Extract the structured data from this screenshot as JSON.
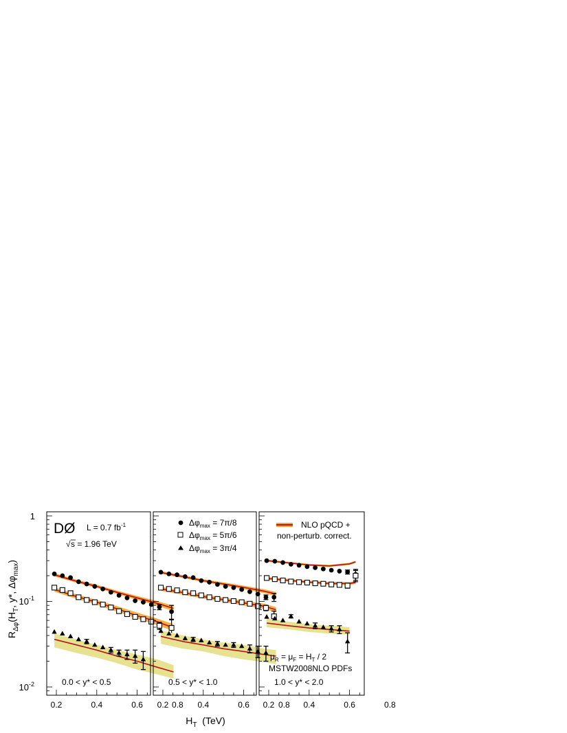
{
  "figure": {
    "experiment_logo": "DØ",
    "luminosity_label": "L = 0.7 fb",
    "luminosity_exp": "-1",
    "energy_sqrt": "√",
    "energy_label": "s = 1.96 TeV",
    "ylabel": {
      "main": "R",
      "sub1": "Δφ",
      "mid": "(H",
      "sub2": "T",
      "tail": ", y*, Δφ",
      "sub3": "max",
      "end": ")"
    },
    "xlabel": {
      "main": "H",
      "sub": "T",
      "tail": "  (TeV)"
    },
    "y_ticks": [
      {
        "label": "1",
        "exp": ""
      },
      {
        "label": "10",
        "exp": "-1"
      },
      {
        "label": "10",
        "exp": "-2"
      }
    ],
    "x_ticks": [
      "0.2",
      "0.4",
      "0.6",
      "0.8"
    ],
    "legend_series": [
      {
        "prefix": "Δφ",
        "sub": "max",
        "value": " = 7π/8"
      },
      {
        "prefix": "Δφ",
        "sub": "max",
        "value": " = 5π/6"
      },
      {
        "prefix": "Δφ",
        "sub": "max",
        "value": " = 3π/4"
      }
    ],
    "legend_theory": {
      "line1": "NLO pQCD +",
      "line2": "non-perturb. correct."
    },
    "scale_note": {
      "mu": "μ",
      "r": "R",
      "eq": " = μ",
      "f": "F",
      "rest": " = H",
      "t": "T",
      "end": " / 2"
    },
    "pdf_note": "MSTW2008NLO PDFs",
    "colors": {
      "theory_line": "#b5121b",
      "band": "#e6e28f",
      "band_edge": "#f2a530"
    }
  },
  "chart_data": [
    {
      "type": "scatter",
      "region": "0.0 < y* < 0.5",
      "xlabel": "HT (TeV)",
      "ylabel": "RΔφ(HT, y*, Δφmax)",
      "y_scale": "log",
      "xlim": [
        0.15,
        0.85
      ],
      "ylim": [
        0.009,
        1.0
      ],
      "series": [
        {
          "name": "Δφmax = 7π/8",
          "marker": "filled-circle",
          "x": [
            0.19,
            0.23,
            0.27,
            0.31,
            0.35,
            0.39,
            0.43,
            0.47,
            0.51,
            0.55,
            0.59,
            0.63,
            0.67,
            0.71,
            0.77
          ],
          "y": [
            0.21,
            0.2,
            0.19,
            0.17,
            0.16,
            0.15,
            0.14,
            0.128,
            0.118,
            0.11,
            0.102,
            0.098,
            0.092,
            0.086,
            0.076
          ],
          "yerr": [
            0,
            0,
            0,
            0,
            0,
            0,
            0,
            0,
            0,
            0,
            0,
            0,
            0,
            0.006,
            0.014
          ]
        },
        {
          "name": "Δφmax = 5π/6",
          "marker": "open-square",
          "x": [
            0.19,
            0.23,
            0.27,
            0.31,
            0.35,
            0.39,
            0.43,
            0.47,
            0.51,
            0.55,
            0.59,
            0.63,
            0.67,
            0.71,
            0.77
          ],
          "y": [
            0.145,
            0.136,
            0.125,
            0.112,
            0.104,
            0.098,
            0.092,
            0.085,
            0.077,
            0.071,
            0.066,
            0.062,
            0.058,
            0.052,
            0.049
          ],
          "yerr": [
            0,
            0,
            0,
            0,
            0,
            0,
            0,
            0,
            0,
            0,
            0,
            0,
            0,
            0.005,
            0.012
          ]
        },
        {
          "name": "Δφmax = 3π/4",
          "marker": "filled-triangle",
          "x": [
            0.19,
            0.23,
            0.27,
            0.31,
            0.35,
            0.39,
            0.43,
            0.47,
            0.51,
            0.55,
            0.59,
            0.63
          ],
          "y": [
            0.044,
            0.042,
            0.039,
            0.036,
            0.034,
            0.031,
            0.029,
            0.027,
            0.025,
            0.024,
            0.023,
            0.021
          ],
          "yerr": [
            0,
            0,
            0,
            0,
            0.002,
            0,
            0,
            0.002,
            0.002,
            0.003,
            0.004,
            0.005
          ]
        }
      ],
      "theory": [
        {
          "series": "Δφmax = 7π/8",
          "x": [
            0.19,
            0.3,
            0.4,
            0.5,
            0.6,
            0.7,
            0.78
          ],
          "center": [
            0.205,
            0.172,
            0.15,
            0.128,
            0.11,
            0.095,
            0.083
          ],
          "band_lo": [
            0.196,
            0.165,
            0.144,
            0.122,
            0.104,
            0.089,
            0.077
          ],
          "band_hi": [
            0.214,
            0.18,
            0.157,
            0.134,
            0.116,
            0.101,
            0.089
          ]
        },
        {
          "series": "Δφmax = 5π/6",
          "x": [
            0.19,
            0.3,
            0.4,
            0.5,
            0.6,
            0.7,
            0.78
          ],
          "center": [
            0.138,
            0.114,
            0.098,
            0.082,
            0.068,
            0.058,
            0.049
          ],
          "band_lo": [
            0.13,
            0.107,
            0.092,
            0.076,
            0.063,
            0.053,
            0.045
          ],
          "band_hi": [
            0.146,
            0.121,
            0.104,
            0.088,
            0.074,
            0.063,
            0.054
          ]
        },
        {
          "series": "Δφmax = 3π/4",
          "x": [
            0.19,
            0.3,
            0.4,
            0.5,
            0.6,
            0.7,
            0.78
          ],
          "center": [
            0.036,
            0.031,
            0.027,
            0.023,
            0.02,
            0.017,
            0.015
          ],
          "band_lo": [
            0.029,
            0.025,
            0.022,
            0.019,
            0.016,
            0.014,
            0.0125
          ],
          "band_hi": [
            0.042,
            0.036,
            0.031,
            0.027,
            0.024,
            0.021,
            0.018
          ]
        }
      ]
    },
    {
      "type": "scatter",
      "region": "0.5 < y* < 1.0",
      "xlabel": "HT (TeV)",
      "ylabel": "RΔφ(HT, y*, Δφmax)",
      "y_scale": "log",
      "xlim": [
        0.15,
        0.85
      ],
      "ylim": [
        0.009,
        1.0
      ],
      "series": [
        {
          "name": "Δφmax = 7π/8",
          "marker": "filled-circle",
          "x": [
            0.19,
            0.23,
            0.27,
            0.31,
            0.35,
            0.39,
            0.43,
            0.47,
            0.51,
            0.55,
            0.59,
            0.63,
            0.67,
            0.71,
            0.75
          ],
          "y": [
            0.22,
            0.21,
            0.205,
            0.195,
            0.19,
            0.175,
            0.168,
            0.158,
            0.15,
            0.145,
            0.138,
            0.13,
            0.122,
            0.112,
            0.112
          ],
          "yerr": [
            0,
            0,
            0,
            0,
            0,
            0,
            0,
            0,
            0,
            0,
            0,
            0,
            0,
            0.007,
            0.012
          ]
        },
        {
          "name": "Δφmax = 5π/6",
          "marker": "open-square",
          "x": [
            0.19,
            0.23,
            0.27,
            0.31,
            0.35,
            0.39,
            0.43,
            0.47,
            0.51,
            0.55,
            0.59,
            0.63,
            0.67,
            0.71,
            0.75
          ],
          "y": [
            0.145,
            0.14,
            0.135,
            0.128,
            0.125,
            0.118,
            0.112,
            0.107,
            0.104,
            0.101,
            0.098,
            0.094,
            0.088,
            0.084,
            0.067
          ],
          "yerr": [
            0,
            0,
            0,
            0,
            0,
            0,
            0,
            0,
            0,
            0,
            0,
            0,
            0,
            0.006,
            0.01
          ]
        },
        {
          "name": "Δφmax = 3π/4",
          "marker": "filled-triangle",
          "x": [
            0.19,
            0.23,
            0.27,
            0.31,
            0.35,
            0.39,
            0.43,
            0.47,
            0.51,
            0.55,
            0.59,
            0.63,
            0.67,
            0.71
          ],
          "y": [
            0.045,
            0.042,
            0.04,
            0.037,
            0.036,
            0.035,
            0.033,
            0.032,
            0.031,
            0.031,
            0.03,
            0.028,
            0.026,
            0.025
          ],
          "yerr": [
            0,
            0,
            0,
            0,
            0.002,
            0,
            0,
            0.002,
            0,
            0.002,
            0,
            0.003,
            0.004,
            0.005
          ]
        }
      ],
      "theory": [
        {
          "series": "Δφmax = 7π/8",
          "x": [
            0.19,
            0.3,
            0.4,
            0.5,
            0.6,
            0.7,
            0.76
          ],
          "center": [
            0.218,
            0.195,
            0.175,
            0.16,
            0.146,
            0.132,
            0.122
          ],
          "band_lo": [
            0.21,
            0.188,
            0.168,
            0.153,
            0.139,
            0.125,
            0.115
          ],
          "band_hi": [
            0.227,
            0.203,
            0.182,
            0.167,
            0.153,
            0.139,
            0.129
          ]
        },
        {
          "series": "Δφmax = 5π/6",
          "x": [
            0.19,
            0.3,
            0.4,
            0.5,
            0.6,
            0.7,
            0.76
          ],
          "center": [
            0.14,
            0.127,
            0.114,
            0.105,
            0.096,
            0.088,
            0.08
          ],
          "band_lo": [
            0.133,
            0.12,
            0.108,
            0.099,
            0.09,
            0.082,
            0.074
          ],
          "band_hi": [
            0.148,
            0.134,
            0.121,
            0.111,
            0.102,
            0.094,
            0.086
          ]
        },
        {
          "series": "Δφmax = 3π/4",
          "x": [
            0.19,
            0.3,
            0.4,
            0.5,
            0.6,
            0.7,
            0.76
          ],
          "center": [
            0.039,
            0.034,
            0.031,
            0.028,
            0.026,
            0.024,
            0.023
          ],
          "band_lo": [
            0.032,
            0.028,
            0.026,
            0.023,
            0.021,
            0.0195,
            0.0185
          ],
          "band_hi": [
            0.046,
            0.04,
            0.036,
            0.033,
            0.031,
            0.028,
            0.027
          ]
        }
      ]
    },
    {
      "type": "scatter",
      "region": "1.0 < y* < 2.0",
      "xlabel": "HT (TeV)",
      "ylabel": "RΔφ(HT, y*, Δφmax)",
      "y_scale": "log",
      "xlim": [
        0.15,
        0.85
      ],
      "ylim": [
        0.009,
        1.0
      ],
      "series": [
        {
          "name": "Δφmax = 7π/8",
          "marker": "filled-circle",
          "x": [
            0.19,
            0.23,
            0.27,
            0.31,
            0.35,
            0.39,
            0.43,
            0.47,
            0.51,
            0.55,
            0.59,
            0.63
          ],
          "y": [
            0.3,
            0.295,
            0.285,
            0.272,
            0.265,
            0.255,
            0.248,
            0.24,
            0.232,
            0.226,
            0.221,
            0.207
          ],
          "yerr": [
            0,
            0,
            0,
            0,
            0,
            0,
            0,
            0,
            0,
            0,
            0.012,
            0.03
          ]
        },
        {
          "name": "Δφmax = 5π/6",
          "marker": "open-square",
          "x": [
            0.19,
            0.23,
            0.27,
            0.31,
            0.35,
            0.39,
            0.43,
            0.47,
            0.51,
            0.55,
            0.59,
            0.63
          ],
          "y": [
            0.188,
            0.182,
            0.176,
            0.171,
            0.168,
            0.166,
            0.163,
            0.161,
            0.158,
            0.156,
            0.153,
            0.2
          ],
          "yerr": [
            0,
            0,
            0,
            0,
            0,
            0,
            0,
            0,
            0,
            0,
            0.01,
            0.03
          ]
        },
        {
          "name": "Δφmax = 3π/4",
          "marker": "filled-triangle",
          "x": [
            0.19,
            0.23,
            0.27,
            0.31,
            0.35,
            0.39,
            0.43,
            0.47,
            0.51,
            0.55,
            0.59
          ],
          "y": [
            0.066,
            0.063,
            0.06,
            0.067,
            0.058,
            0.055,
            0.052,
            0.05,
            0.048,
            0.047,
            0.034
          ],
          "yerr": [
            0,
            0,
            0,
            0.003,
            0,
            0,
            0.004,
            0,
            0.004,
            0.005,
            0.009
          ]
        }
      ],
      "theory": [
        {
          "series": "Δφmax = 7π/8",
          "x": [
            0.19,
            0.3,
            0.4,
            0.5,
            0.6,
            0.63
          ],
          "center": [
            0.3,
            0.282,
            0.267,
            0.26,
            0.275,
            0.29
          ],
          "band_lo": [
            0.292,
            0.275,
            0.26,
            0.253,
            0.267,
            0.282
          ],
          "band_hi": [
            0.309,
            0.29,
            0.275,
            0.268,
            0.283,
            0.299
          ]
        },
        {
          "series": "Δφmax = 5π/6",
          "x": [
            0.19,
            0.3,
            0.4,
            0.5,
            0.6,
            0.63
          ],
          "center": [
            0.186,
            0.176,
            0.168,
            0.162,
            0.162,
            0.167
          ],
          "band_lo": [
            0.18,
            0.17,
            0.162,
            0.156,
            0.156,
            0.161
          ],
          "band_hi": [
            0.193,
            0.183,
            0.175,
            0.169,
            0.169,
            0.174
          ]
        },
        {
          "series": "Δφmax = 3π/4",
          "x": [
            0.19,
            0.3,
            0.4,
            0.5,
            0.6
          ],
          "center": [
            0.056,
            0.052,
            0.049,
            0.047,
            0.045
          ],
          "band_lo": [
            0.05,
            0.047,
            0.044,
            0.042,
            0.041
          ],
          "band_hi": [
            0.063,
            0.058,
            0.054,
            0.052,
            0.05
          ]
        }
      ]
    }
  ]
}
